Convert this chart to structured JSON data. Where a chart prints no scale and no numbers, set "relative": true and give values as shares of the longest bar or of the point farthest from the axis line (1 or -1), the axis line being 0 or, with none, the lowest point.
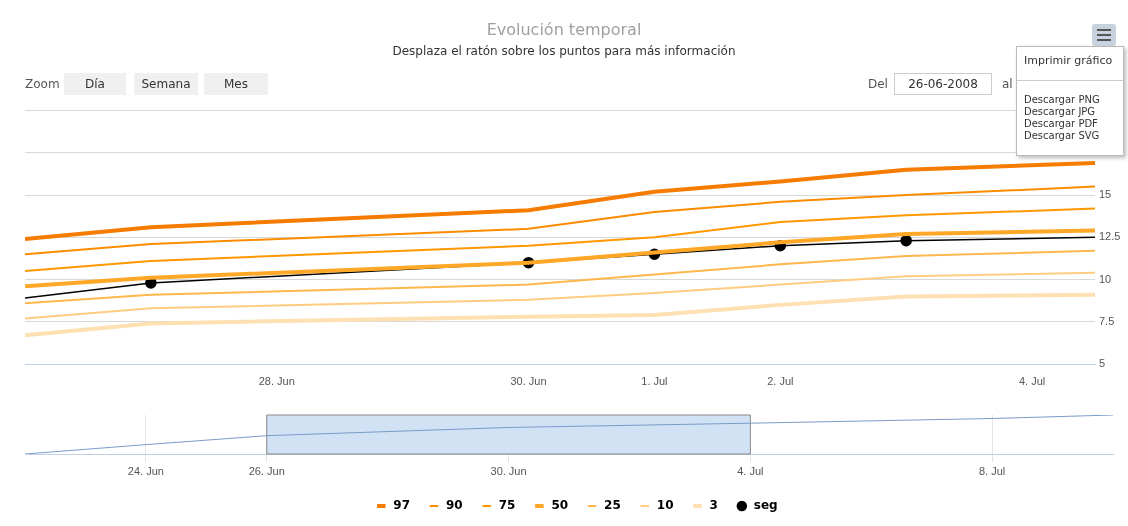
{
  "chart_data": [
    {
      "type": "line",
      "title": "Evolución temporal",
      "subtitle": "Desplaza el ratón sobre los puntos para más información",
      "annotations": [
        "Zoom",
        "Día",
        "Semana",
        "Mes",
        "Del",
        "26-06-2008",
        "al",
        "Imprimir gráfico",
        "Descargar PNG",
        "Descargar JPG",
        "Descargar PDF",
        "Descargar SVG"
      ],
      "x": [
        "2008-06-26",
        "2008-06-27",
        "2008-06-30",
        "2008-07-01",
        "2008-07-02",
        "2008-07-03",
        "2008-07-04T12:00"
      ],
      "series": [
        {
          "name": "97",
          "color": "#f57c00",
          "values": [
            12.4,
            13.1,
            14.1,
            15.2,
            15.8,
            16.5,
            16.9
          ],
          "marker": "none"
        },
        {
          "name": "90",
          "color": "#fb8c00",
          "values": [
            11.5,
            12.1,
            13.0,
            14.0,
            14.6,
            15.0,
            15.5
          ],
          "marker": "none"
        },
        {
          "name": "75",
          "color": "#ff9800",
          "values": [
            10.5,
            11.1,
            12.0,
            12.5,
            13.4,
            13.8,
            14.2
          ],
          "marker": "none"
        },
        {
          "name": "50",
          "color": "#ffa726",
          "values": [
            9.6,
            10.1,
            11.0,
            11.6,
            12.2,
            12.7,
            12.9
          ],
          "marker": "none"
        },
        {
          "name": "25",
          "color": "#ffb74d",
          "values": [
            8.6,
            9.1,
            9.7,
            10.3,
            10.9,
            11.4,
            11.7
          ],
          "marker": "none"
        },
        {
          "name": "10",
          "color": "#ffcc80",
          "values": [
            7.7,
            8.3,
            8.8,
            9.2,
            9.7,
            10.2,
            10.4
          ],
          "marker": "none"
        },
        {
          "name": "3",
          "color": "#ffe0b2",
          "values": [
            6.7,
            7.4,
            7.8,
            7.9,
            8.5,
            9.0,
            9.1
          ],
          "marker": "none"
        },
        {
          "name": "seg",
          "color": "#000000",
          "values": [
            8.9,
            9.8,
            11.0,
            11.5,
            12.0,
            12.3,
            12.5
          ],
          "marker": "circle"
        }
      ],
      "xlim": [
        "2008-06-26",
        "2008-07-04T12:00"
      ],
      "xticks": [
        {
          "value": "2008-06-28",
          "label": "28. Jun"
        },
        {
          "value": "2008-06-30",
          "label": "30. Jun"
        },
        {
          "value": "2008-07-01",
          "label": "1. Jul"
        },
        {
          "value": "2008-07-02",
          "label": "2. Jul"
        },
        {
          "value": "2008-07-04",
          "label": "4. Jul"
        }
      ],
      "ylim": [
        5,
        20
      ],
      "yticks": [
        5,
        7.5,
        10,
        12.5,
        15,
        {
          "value": 17.5,
          "label": null
        },
        {
          "value": 20,
          "label": null
        }
      ],
      "grid": "y",
      "legend": "bottom"
    },
    {
      "type": "line",
      "relative": true,
      "tick_labels": "x",
      "x": [
        "2008-06-22",
        "2008-06-24",
        "2008-06-26",
        "2008-06-30",
        "2008-07-04",
        "2008-07-08",
        "2008-07-10"
      ],
      "series": [
        {
          "color": "#7a9cc9",
          "values": [
            0,
            0.24,
            0.47,
            0.68,
            0.79,
            0.91,
            1
          ]
        }
      ],
      "xlim": [
        "2008-06-22",
        "2008-07-10"
      ],
      "xticks": [
        {
          "value": "2008-06-24",
          "label": "24. Jun"
        },
        {
          "value": "2008-06-26",
          "label": "26. Jun"
        },
        {
          "value": "2008-06-30",
          "label": "30. Jun"
        },
        {
          "value": "2008-07-04",
          "label": "4. Jul"
        },
        {
          "value": "2008-07-08",
          "label": "8. Jul"
        }
      ],
      "bands": [
        {
          "axis": "x",
          "from": "2008-06-26",
          "to": "2008-07-04",
          "color": "#d2e2f5"
        }
      ],
      "grid": "x"
    }
  ]
}
